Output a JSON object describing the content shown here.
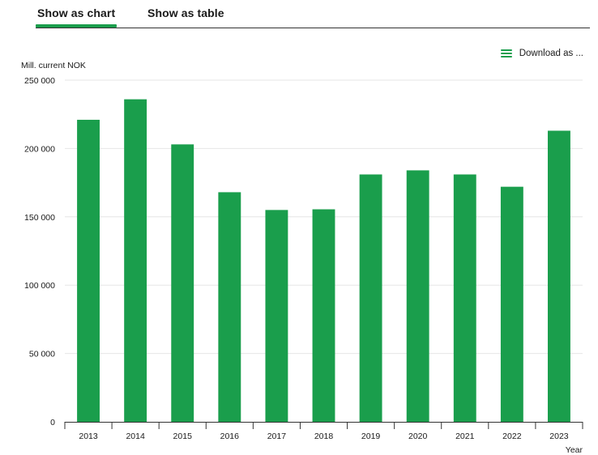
{
  "tabs": {
    "chart_label": "Show as chart",
    "table_label": "Show as table"
  },
  "download": {
    "label": "Download as ...",
    "icon": "menu-icon"
  },
  "colors": {
    "accent": "#1a9e4c",
    "bar": "#1a9e4c"
  },
  "chart_data": {
    "type": "bar",
    "categories": [
      "2013",
      "2014",
      "2015",
      "2016",
      "2017",
      "2018",
      "2019",
      "2020",
      "2021",
      "2022",
      "2023"
    ],
    "values": [
      221000,
      236000,
      203000,
      168000,
      155000,
      155500,
      181000,
      184000,
      181000,
      172000,
      213000
    ],
    "ylabel": "Mill. current NOK",
    "xlabel": "Year",
    "ylim": [
      0,
      250000
    ],
    "yticks": [
      0,
      50000,
      100000,
      150000,
      200000,
      250000
    ],
    "ytick_labels": [
      "0",
      "50 000",
      "100 000",
      "150 000",
      "200 000",
      "250 000"
    ],
    "grid": true
  }
}
